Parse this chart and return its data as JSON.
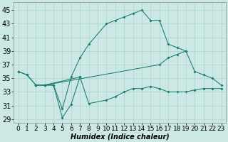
{
  "xlabel": "Humidex (Indice chaleur)",
  "bg_color": "#cce8e4",
  "grid_color": "#aad4cc",
  "line_color": "#1a7a6e",
  "xlim": [
    -0.5,
    23.5
  ],
  "ylim": [
    28.5,
    46.2
  ],
  "xticks": [
    0,
    1,
    2,
    3,
    4,
    5,
    6,
    7,
    8,
    9,
    10,
    11,
    12,
    13,
    14,
    15,
    16,
    17,
    18,
    19,
    20,
    21,
    22,
    23
  ],
  "yticks": [
    29,
    31,
    33,
    35,
    37,
    39,
    41,
    43,
    45
  ],
  "series": [
    {
      "x": [
        0,
        1,
        2,
        3,
        4,
        5,
        6,
        7,
        8,
        10,
        11,
        12,
        13,
        14,
        15,
        16,
        17,
        18,
        19
      ],
      "y": [
        36,
        35.5,
        34,
        34,
        34,
        30.5,
        35.2,
        38,
        40,
        43,
        43.5,
        44,
        44.5,
        45,
        43.5,
        43.5,
        40,
        39.5,
        39
      ]
    },
    {
      "x": [
        0,
        1,
        2,
        3,
        4,
        5,
        6,
        7
      ],
      "y": [
        36,
        35.5,
        34,
        34,
        34,
        29.2,
        31.2,
        35.2
      ]
    },
    {
      "x": [
        2,
        3,
        16,
        17,
        18,
        19,
        20,
        21,
        22,
        23
      ],
      "y": [
        34,
        34,
        37,
        38,
        38.5,
        39,
        36,
        35.5,
        35,
        34
      ]
    },
    {
      "x": [
        2,
        3,
        7,
        8,
        10,
        11,
        12,
        13,
        14,
        15,
        16,
        17,
        18,
        19,
        20,
        21,
        22,
        23
      ],
      "y": [
        34,
        34,
        35.2,
        31.3,
        31.8,
        32.3,
        33,
        33.5,
        33.5,
        33.8,
        33.5,
        33,
        33,
        33,
        33.3,
        33.5,
        33.5,
        33.5
      ]
    }
  ],
  "xlabel_fontsize": 7,
  "tick_fontsize": 6.5
}
